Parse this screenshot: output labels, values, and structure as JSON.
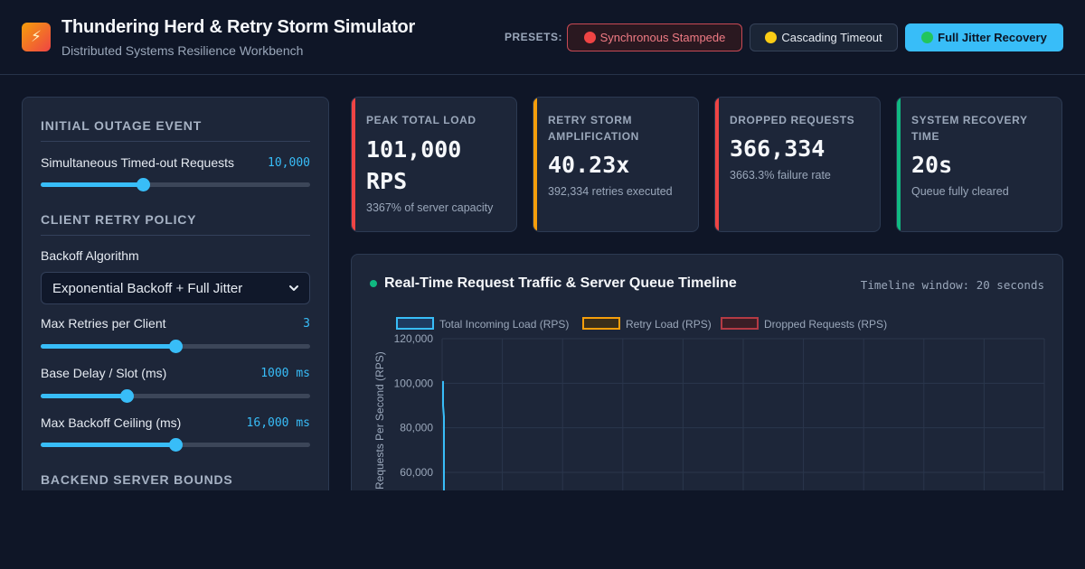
{
  "header": {
    "logo_glyph": "⚡",
    "title": "Thundering Herd & Retry Storm Simulator",
    "subtitle": "Distributed Systems Resilience Workbench",
    "presets_label": "PRESETS:",
    "presets": [
      {
        "label": "Synchronous Stampede",
        "dot_color": "#ef4444"
      },
      {
        "label": "Cascading Timeout",
        "dot_color": "#facc15"
      },
      {
        "label": "Full Jitter Recovery",
        "dot_color": "#22c55e"
      }
    ]
  },
  "sidebar": {
    "outage_title": "INITIAL OUTAGE EVENT",
    "requests_label": "Simultaneous Timed-out Requests",
    "requests_value": "10,000",
    "requests_fraction": 0.38,
    "retry_title": "CLIENT RETRY POLICY",
    "backoff_label": "Backoff Algorithm",
    "backoff_value": "Exponential Backoff + Full Jitter",
    "max_retries_label": "Max Retries per Client",
    "max_retries_value": "3",
    "max_retries_fraction": 0.5,
    "base_delay_label": "Base Delay / Slot (ms)",
    "base_delay_value": "1000 ms",
    "base_delay_fraction": 0.32,
    "ceiling_label": "Max Backoff Ceiling (ms)",
    "ceiling_value": "16,000 ms",
    "ceiling_fraction": 0.5,
    "server_title": "BACKEND SERVER BOUNDS"
  },
  "cards": [
    {
      "label": "PEAK TOTAL LOAD",
      "value_line1": "101,000",
      "value_line2": "RPS",
      "sub": "3367% of server capacity",
      "accent": "#ef4444"
    },
    {
      "label_line1": "RETRY STORM",
      "label_line2": "AMPLIFICATION",
      "value": "40.23x",
      "sub": "392,334 retries executed",
      "accent": "#f59e0b"
    },
    {
      "label": "DROPPED REQUESTS",
      "value": "366,334",
      "sub": "3663.3% failure rate",
      "accent": "#ef4444"
    },
    {
      "label_line1": "SYSTEM RECOVERY",
      "label_line2": "TIME",
      "value": "20s",
      "sub": "Queue fully cleared",
      "accent": "#10b981"
    }
  ],
  "chart_panel": {
    "title": "Real-Time Request Traffic & Server Queue Timeline",
    "window_label": "Timeline window: 20 seconds"
  },
  "chart_data": {
    "type": "line",
    "ylabel": "Requests Per Second (RPS)",
    "yticks": [
      "120,000",
      "100,000",
      "80,000",
      "60,000"
    ],
    "ylim_visible": [
      60000,
      120000
    ],
    "legend_placement": "top",
    "grid": true,
    "series": [
      {
        "name": "Total Incoming Load (RPS)",
        "color": "#38bdf8",
        "fill": "#1e3a5f",
        "visible_values": [
          101000,
          60000
        ]
      },
      {
        "name": "Retry Load (RPS)",
        "color": "#f59e0b",
        "fill": "#3a2e1a"
      },
      {
        "name": "Dropped Requests (RPS)",
        "color": "#b43a44",
        "fill": "#3a1e26"
      }
    ]
  }
}
